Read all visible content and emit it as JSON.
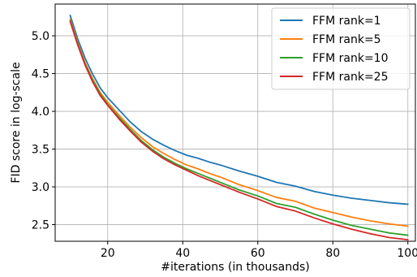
{
  "chart_data": {
    "type": "line",
    "title": "",
    "xlabel": "#iterations (in thousands)",
    "ylabel": "FID score in log-scale",
    "xlim": [
      6,
      102
    ],
    "ylim": [
      2.28,
      5.42
    ],
    "x_ticks": [
      20,
      40,
      60,
      80,
      100
    ],
    "y_ticks": [
      2.5,
      3.0,
      3.5,
      4.0,
      4.5,
      5.0
    ],
    "grid": true,
    "legend_position": "top-right",
    "x": [
      10,
      12,
      14,
      16,
      18,
      20,
      23,
      26,
      29,
      32,
      35,
      38,
      41,
      44,
      47,
      50,
      55,
      60,
      65,
      70,
      75,
      80,
      85,
      90,
      95,
      100
    ],
    "series": [
      {
        "name": "FFM rank=1",
        "color": "#1f77b4",
        "values": [
          5.27,
          4.96,
          4.7,
          4.49,
          4.31,
          4.18,
          4.02,
          3.86,
          3.73,
          3.63,
          3.55,
          3.48,
          3.42,
          3.38,
          3.33,
          3.29,
          3.21,
          3.14,
          3.06,
          3.01,
          2.94,
          2.89,
          2.85,
          2.82,
          2.79,
          2.77
        ]
      },
      {
        "name": "FFM rank=5",
        "color": "#ff7f0e",
        "values": [
          5.22,
          4.91,
          4.64,
          4.43,
          4.25,
          4.12,
          3.95,
          3.79,
          3.65,
          3.53,
          3.44,
          3.36,
          3.29,
          3.24,
          3.18,
          3.13,
          3.03,
          2.95,
          2.86,
          2.81,
          2.72,
          2.66,
          2.6,
          2.55,
          2.51,
          2.48
        ]
      },
      {
        "name": "FFM rank=10",
        "color": "#2ca02c",
        "values": [
          5.2,
          4.89,
          4.62,
          4.41,
          4.23,
          4.09,
          3.92,
          3.76,
          3.61,
          3.49,
          3.39,
          3.31,
          3.24,
          3.18,
          3.12,
          3.06,
          2.96,
          2.88,
          2.78,
          2.73,
          2.64,
          2.56,
          2.49,
          2.44,
          2.39,
          2.36
        ]
      },
      {
        "name": "FFM rank=25",
        "color": "#d62728",
        "values": [
          5.19,
          4.88,
          4.61,
          4.39,
          4.21,
          4.08,
          3.9,
          3.74,
          3.59,
          3.47,
          3.37,
          3.29,
          3.22,
          3.15,
          3.09,
          3.03,
          2.93,
          2.84,
          2.74,
          2.68,
          2.59,
          2.51,
          2.44,
          2.38,
          2.33,
          2.3
        ]
      }
    ]
  }
}
